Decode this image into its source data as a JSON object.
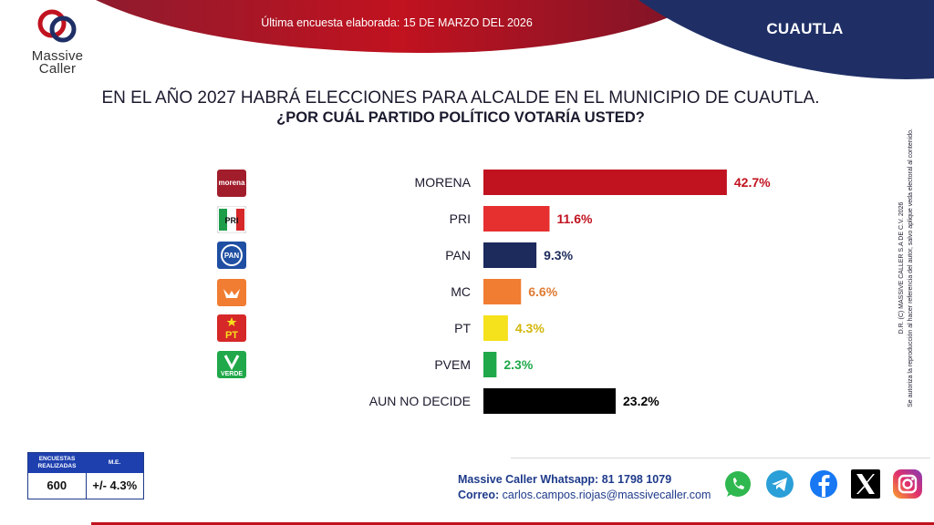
{
  "header": {
    "brand_name": "Massive Caller",
    "survey_date": "Última encuesta elaborada: 15 DE MARZO DEL 2026",
    "region": "CUAUTLA"
  },
  "question": {
    "line1": "EN EL AÑO 2027 HABRÁ ELECCIONES PARA ALCALDE EN EL MUNICIPIO DE CUAUTLA.",
    "line2": "¿POR CUÁL PARTIDO POLÍTICO VOTARÍA USTED?"
  },
  "chart_data": {
    "type": "bar",
    "orientation": "horizontal",
    "categories": [
      "MORENA",
      "PRI",
      "PAN",
      "MC",
      "PT",
      "PVEM",
      "AUN NO DECIDE"
    ],
    "values": [
      42.7,
      11.6,
      9.3,
      6.6,
      4.3,
      2.3,
      23.2
    ],
    "value_labels": [
      "42.7%",
      "11.6%",
      "9.3%",
      "6.6%",
      "4.3%",
      "2.3%",
      "23.2%"
    ],
    "colors": [
      "#c1121f",
      "#e63030",
      "#1c2a5c",
      "#f07d32",
      "#f5e11c",
      "#20a84a",
      "#000000"
    ],
    "label_colors": [
      "#c1121f",
      "#c1121f",
      "#1c2a5c",
      "#e07b32",
      "#d4b60a",
      "#20a84a",
      "#000000"
    ],
    "party_icons": [
      {
        "name": "morena-logo-icon",
        "text": "morena"
      },
      {
        "name": "pri-logo-icon",
        "text": "PRI"
      },
      {
        "name": "pan-logo-icon",
        "text": "PAN"
      },
      {
        "name": "mc-logo-icon",
        "text": ""
      },
      {
        "name": "pt-logo-icon",
        "text": "PT"
      },
      {
        "name": "pvem-logo-icon",
        "text": "VERDE"
      }
    ]
  },
  "copyright": {
    "line1": "D.R. (C) MASSIVE CALLER S.A DE C.V. 2026",
    "line2": "Se autoriza la reproducción al hacer referencia del autor, salvo aplique veda electoral al contenido."
  },
  "stats": {
    "col1_header_line1": "ENCUESTAS",
    "col1_header_line2": "REALIZADAS",
    "col2_header": "M.E.",
    "count": "600",
    "margin": "+/- 4.3%"
  },
  "contact": {
    "whatsapp_label": "Massive Caller Whatsapp:",
    "whatsapp_value": "81 1798 1079",
    "email_label": "Correo:",
    "email_value": "carlos.campos.riojas@massivecaller.com"
  },
  "social": [
    "whatsapp-icon",
    "telegram-icon",
    "facebook-icon",
    "x-icon",
    "instagram-icon"
  ]
}
